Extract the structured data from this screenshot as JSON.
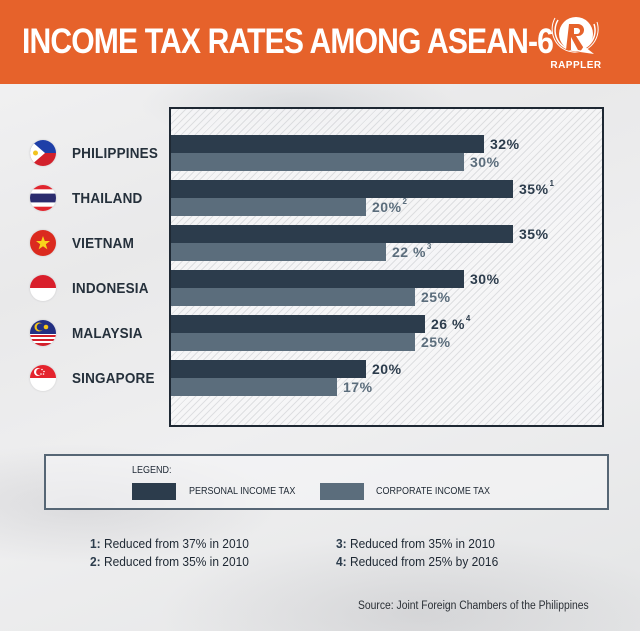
{
  "header": {
    "title": "INCOME TAX RATES AMONG ASEAN-6",
    "logo_text": "RAPPLER",
    "background_color": "#e6622b"
  },
  "colors": {
    "personal": "#2c3c4c",
    "corporate": "#5b6d7c"
  },
  "countries": [
    {
      "name": "PHILIPPINES",
      "flag": "philippines-flag-icon",
      "personal": "32%",
      "personal_note": "",
      "corporate": "30%",
      "corporate_note": ""
    },
    {
      "name": "THAILAND",
      "flag": "thailand-flag-icon",
      "personal": "35%",
      "personal_note": "1",
      "corporate": "20%",
      "corporate_note": "2"
    },
    {
      "name": "VIETNAM",
      "flag": "vietnam-flag-icon",
      "personal": "35%",
      "personal_note": "",
      "corporate": "22 %",
      "corporate_note": "3"
    },
    {
      "name": "INDONESIA",
      "flag": "indonesia-flag-icon",
      "personal": "30%",
      "personal_note": "",
      "corporate": "25%",
      "corporate_note": ""
    },
    {
      "name": "MALAYSIA",
      "flag": "malaysia-flag-icon",
      "personal": "26 %",
      "personal_note": "4",
      "corporate": "25%",
      "corporate_note": ""
    },
    {
      "name": "SINGAPORE",
      "flag": "singapore-flag-icon",
      "personal": "20%",
      "personal_note": "",
      "corporate": "17%",
      "corporate_note": ""
    }
  ],
  "legend": {
    "title": "LEGEND:",
    "items": [
      {
        "label": "PERSONAL INCOME TAX",
        "color": "#2c3c4c"
      },
      {
        "label": "CORPORATE INCOME TAX",
        "color": "#5b6d7c"
      }
    ]
  },
  "notes": [
    {
      "num": "1:",
      "text": "Reduced from 37% in 2010"
    },
    {
      "num": "2:",
      "text": " Reduced from 35% in 2010"
    },
    {
      "num": "3:",
      "text": "Reduced from 35% in 2010"
    },
    {
      "num": "4:",
      "text": "Reduced from 25% by 2016"
    }
  ],
  "source": "Source: Joint Foreign Chambers of the Philippines",
  "chart_data": {
    "type": "bar",
    "orientation": "horizontal",
    "title": "INCOME TAX RATES AMONG ASEAN-6",
    "categories": [
      "Philippines",
      "Thailand",
      "Vietnam",
      "Indonesia",
      "Malaysia",
      "Singapore"
    ],
    "series": [
      {
        "name": "Personal Income Tax",
        "color": "#2c3c4c",
        "values": [
          32,
          35,
          35,
          30,
          26,
          20
        ]
      },
      {
        "name": "Corporate Income Tax",
        "color": "#5b6d7c",
        "values": [
          30,
          20,
          22,
          25,
          25,
          17
        ]
      }
    ],
    "annotations": [
      {
        "ref": "1",
        "target": "Thailand personal",
        "text": "Reduced from 37% in 2010"
      },
      {
        "ref": "2",
        "target": "Thailand corporate",
        "text": "Reduced from 35% in 2010"
      },
      {
        "ref": "3",
        "target": "Vietnam corporate",
        "text": "Reduced from 35% in 2010"
      },
      {
        "ref": "4",
        "target": "Malaysia personal",
        "text": "Reduced from 25% by 2016"
      }
    ],
    "unit": "%",
    "xlabel": "",
    "ylabel": "",
    "grid": false,
    "legend_position": "bottom",
    "source": "Joint Foreign Chambers of the Philippines"
  }
}
